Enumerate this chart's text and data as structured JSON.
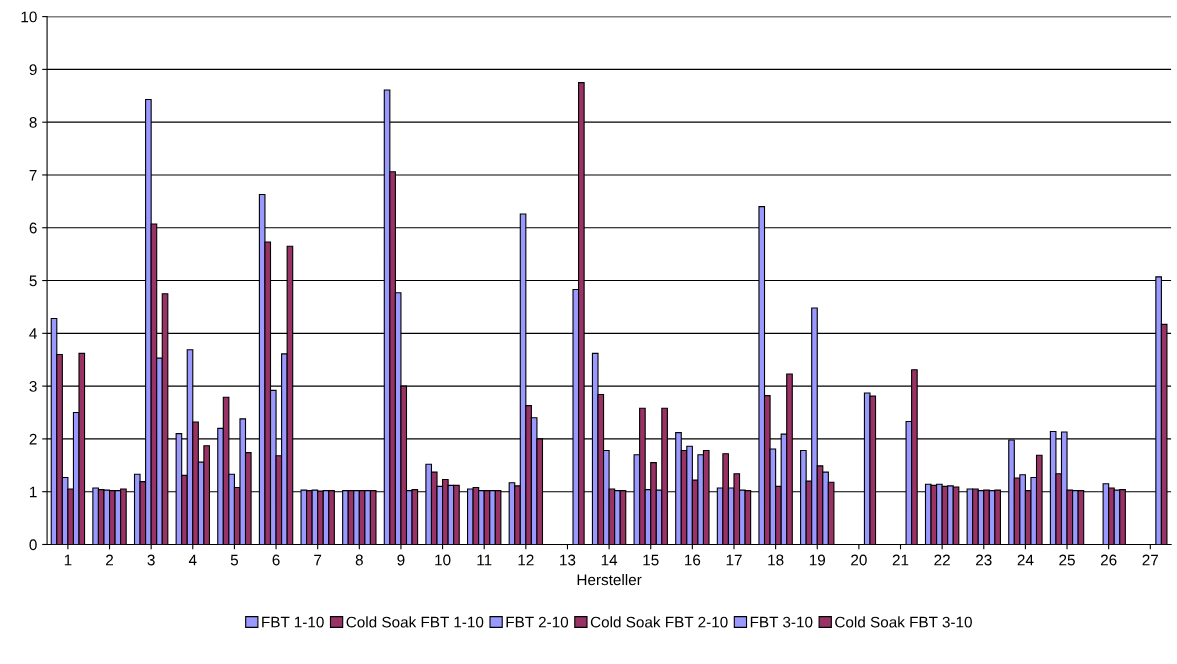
{
  "chart_data": {
    "type": "bar",
    "xlabel": "Hersteller",
    "categories": [
      "1",
      "2",
      "3",
      "4",
      "5",
      "6",
      "7",
      "8",
      "9",
      "10",
      "11",
      "12",
      "13",
      "14",
      "15",
      "16",
      "17",
      "18",
      "19",
      "20",
      "21",
      "22",
      "23",
      "24",
      "25",
      "26",
      "27"
    ],
    "series": [
      {
        "name": "FBT 1-10",
        "color": "#9999ff",
        "values": [
          4.28,
          1.07,
          1.33,
          2.1,
          2.2,
          6.63,
          1.03,
          1.02,
          8.61,
          1.52,
          1.05,
          1.17,
          null,
          3.62,
          1.7,
          2.12,
          1.07,
          6.4,
          1.78,
          null,
          null,
          1.14,
          1.05,
          1.98,
          2.14,
          null,
          null
        ]
      },
      {
        "name": "Cold Soak FBT 1-10",
        "color": "#993366",
        "values": [
          3.6,
          1.04,
          1.19,
          1.31,
          2.79,
          5.73,
          1.02,
          1.02,
          7.06,
          1.37,
          1.08,
          1.11,
          null,
          2.84,
          2.58,
          1.78,
          1.72,
          2.82,
          1.2,
          null,
          null,
          1.12,
          1.05,
          1.26,
          1.34,
          null,
          null
        ]
      },
      {
        "name": "FBT 2-10",
        "color": "#9999ff",
        "values": [
          1.27,
          1.03,
          8.43,
          3.69,
          1.33,
          2.92,
          1.03,
          1.02,
          4.77,
          1.1,
          1.02,
          6.26,
          null,
          1.78,
          1.04,
          1.86,
          1.07,
          1.81,
          4.48,
          null,
          null,
          1.14,
          1.02,
          1.32,
          2.13,
          1.15,
          null
        ]
      },
      {
        "name": "Cold Soak FBT 2-10",
        "color": "#993366",
        "values": [
          1.05,
          1.02,
          6.07,
          2.32,
          1.08,
          1.68,
          1.01,
          1.02,
          3.0,
          1.23,
          1.02,
          2.63,
          null,
          1.05,
          1.55,
          1.22,
          1.34,
          1.1,
          1.49,
          null,
          null,
          1.1,
          1.03,
          1.02,
          1.03,
          1.07,
          null
        ]
      },
      {
        "name": "FBT 3-10",
        "color": "#9999ff",
        "values": [
          2.5,
          1.02,
          3.53,
          1.56,
          2.38,
          3.61,
          1.02,
          1.02,
          1.02,
          1.12,
          1.02,
          2.4,
          4.83,
          1.02,
          1.03,
          1.7,
          1.03,
          2.09,
          1.37,
          2.87,
          2.33,
          1.11,
          1.02,
          1.27,
          1.02,
          1.03,
          5.07
        ]
      },
      {
        "name": "Cold Soak FBT 3-10",
        "color": "#993366",
        "values": [
          3.62,
          1.05,
          4.75,
          1.87,
          1.74,
          5.65,
          1.02,
          1.02,
          1.04,
          1.12,
          1.02,
          2.0,
          8.75,
          1.02,
          2.58,
          1.78,
          1.02,
          3.23,
          1.18,
          2.81,
          3.31,
          1.09,
          1.03,
          1.69,
          1.02,
          1.04,
          4.17
        ]
      }
    ],
    "ylim": [
      0,
      10
    ],
    "yticks": [
      0,
      1,
      2,
      3,
      4,
      5,
      6,
      7,
      8,
      9,
      10
    ],
    "grid": "y",
    "legend": "bottom"
  }
}
